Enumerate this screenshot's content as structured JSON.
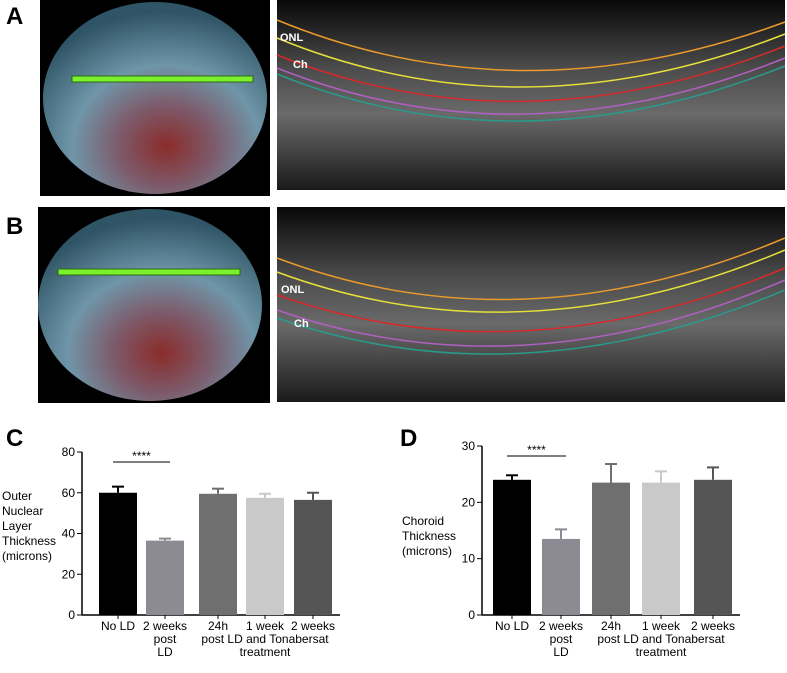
{
  "figure": {
    "panel_labels": [
      "A",
      "B",
      "C",
      "D"
    ],
    "image_labels": {
      "onl": "ONL",
      "ch": "Ch"
    }
  },
  "chart_data": [
    {
      "type": "bar",
      "ylabel": [
        "Outer",
        "Nuclear",
        "Layer",
        "Thickness",
        "(microns)"
      ],
      "categories": [
        [
          "No LD"
        ],
        [
          "2 weeks",
          "post",
          "LD"
        ],
        [
          "24h"
        ],
        [
          "1 week"
        ],
        [
          "2 weeks"
        ]
      ],
      "group_label": [
        "post LD and Tonabersat",
        "treatment"
      ],
      "values": [
        60,
        36.5,
        59.5,
        57.5,
        56.5
      ],
      "errors": [
        3,
        1,
        2.5,
        2,
        3.5
      ],
      "colors": [
        "#000000",
        "#8c8b93",
        "#6f6f6f",
        "#c9c9c9",
        "#555555"
      ],
      "annotation": "****",
      "ylim": [
        0,
        80
      ],
      "yticks": [
        0,
        20,
        40,
        60,
        80
      ]
    },
    {
      "type": "bar",
      "ylabel": [
        "Choroid",
        "Thickness",
        "(microns)"
      ],
      "categories": [
        [
          "No LD"
        ],
        [
          "2 weeks",
          "post",
          "LD"
        ],
        [
          "24h"
        ],
        [
          "1 week"
        ],
        [
          "2 weeks"
        ]
      ],
      "group_label": [
        "post LD and Tonabersat",
        "treatment"
      ],
      "values": [
        24,
        13.5,
        23.5,
        23.5,
        24
      ],
      "errors": [
        0.8,
        1.7,
        3.3,
        2,
        2.2
      ],
      "colors": [
        "#000000",
        "#8c8b93",
        "#6f6f6f",
        "#c9c9c9",
        "#555555"
      ],
      "annotation": "****",
      "ylim": [
        0,
        30
      ],
      "yticks": [
        0,
        10,
        20,
        30
      ]
    }
  ]
}
